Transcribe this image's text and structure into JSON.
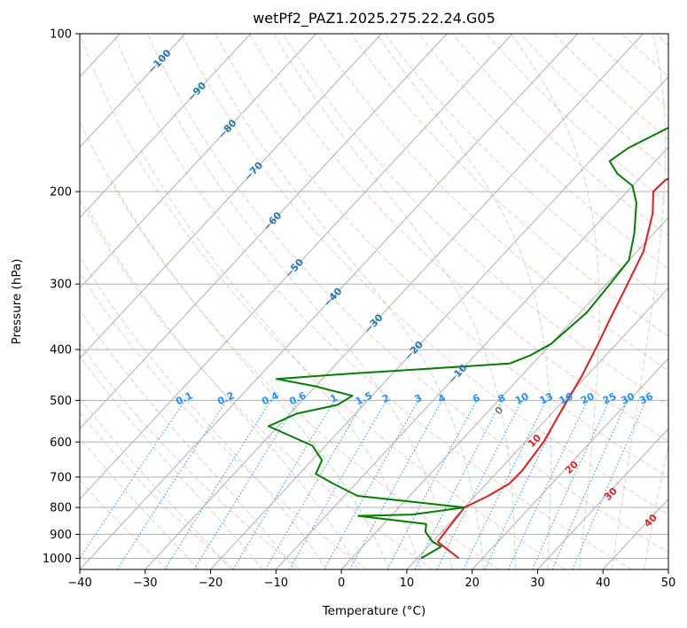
{
  "chart_data": {
    "type": "line",
    "title": "wetPf2_PAZ1.2025.275.22.24.G05",
    "xlabel": "Temperature (°C)",
    "ylabel": "Pressure (hPa)",
    "xlim": [
      -40,
      50
    ],
    "ylim": [
      1050,
      100
    ],
    "y_scale": "log",
    "x_ticks": [
      "−40",
      "−30",
      "−20",
      "−10",
      "0",
      "10",
      "20",
      "30",
      "40",
      "50"
    ],
    "x_tick_values": [
      -40,
      -30,
      -20,
      -10,
      0,
      10,
      20,
      30,
      40,
      50
    ],
    "y_ticks": [
      "100",
      "200",
      "300",
      "400",
      "500",
      "600",
      "700",
      "800",
      "900",
      "1000"
    ],
    "y_tick_values": [
      100,
      200,
      300,
      400,
      500,
      600,
      700,
      800,
      900,
      1000
    ],
    "colors": {
      "temperature": "#e41a1c",
      "dewpoint": "#008000",
      "isotherm_labels": "#1f77b4",
      "mixing_ratio": "#1e90ff",
      "moist_adiabat_labels": "#d62728",
      "zero_label": "#808080",
      "dry_adiabat": "#fa8072",
      "moist_adiabat": "#8fbc8f",
      "grid": "#b0b0b0"
    },
    "series": [
      {
        "key": "temperature",
        "points": [
          [
            16.4,
            1000
          ],
          [
            10.8,
            930
          ],
          [
            10.6,
            900
          ],
          [
            10.3,
            850
          ],
          [
            10.0,
            800
          ],
          [
            12.0,
            760
          ],
          [
            13.5,
            720
          ],
          [
            13.6,
            680
          ],
          [
            12.8,
            600
          ],
          [
            11.0,
            520
          ],
          [
            9.3,
            450
          ],
          [
            7.2,
            390
          ],
          [
            5.5,
            350
          ],
          [
            3.7,
            310
          ],
          [
            1.0,
            260
          ],
          [
            -3.0,
            220
          ],
          [
            -6.0,
            200
          ],
          [
            -5.8,
            190
          ],
          [
            -3.0,
            180
          ],
          [
            -1.5,
            170
          ],
          [
            0.0,
            160
          ],
          [
            3.5,
            150
          ],
          [
            10.0,
            140
          ],
          [
            19.0,
            120
          ],
          [
            27.0,
            100
          ]
        ]
      },
      {
        "key": "dewpoint",
        "points": [
          [
            10.6,
            1000
          ],
          [
            12.0,
            950
          ],
          [
            10.0,
            930
          ],
          [
            7.5,
            890
          ],
          [
            6.5,
            860
          ],
          [
            -5.0,
            830
          ],
          [
            3.0,
            825
          ],
          [
            10.0,
            800
          ],
          [
            -8.0,
            760
          ],
          [
            -13.5,
            720
          ],
          [
            -17.5,
            690
          ],
          [
            -18.5,
            650
          ],
          [
            -22.0,
            610
          ],
          [
            -31.5,
            560
          ],
          [
            -29.0,
            530
          ],
          [
            -24.0,
            510
          ],
          [
            -23.0,
            490
          ],
          [
            -30.0,
            470
          ],
          [
            -37.0,
            455
          ],
          [
            -27.0,
            445
          ],
          [
            -15.0,
            435
          ],
          [
            -3.5,
            425
          ],
          [
            -1.5,
            410
          ],
          [
            0.0,
            390
          ],
          [
            1.0,
            340
          ],
          [
            0.5,
            300
          ],
          [
            0.0,
            270
          ],
          [
            -3.0,
            240
          ],
          [
            -7.0,
            210
          ],
          [
            -10.0,
            195
          ],
          [
            -14.0,
            185
          ],
          [
            -17.0,
            175
          ],
          [
            -16.0,
            165
          ],
          [
            -10.0,
            140
          ],
          [
            -2.0,
            120
          ],
          [
            7.0,
            100
          ]
        ]
      }
    ],
    "isotherm_labels": [
      "−100",
      "−90",
      "−80",
      "−70",
      "−60",
      "−50",
      "−40",
      "−30",
      "−20",
      "−10"
    ],
    "isotherm_values": [
      -100,
      -90,
      -80,
      -70,
      -60,
      -50,
      -40,
      -30,
      -20,
      -10
    ],
    "mixing_ratio_labels": [
      "0.1",
      "0.2",
      "0.4",
      "0.6",
      "1",
      "1.5",
      "2",
      "3",
      "4",
      "6",
      "8",
      "10",
      "13",
      "16",
      "20",
      "25",
      "30",
      "36"
    ],
    "mixing_ratio_values": [
      0.1,
      0.2,
      0.4,
      0.6,
      1,
      1.5,
      2,
      3,
      4,
      6,
      8,
      10,
      13,
      16,
      20,
      25,
      30,
      36
    ],
    "moist_adiabat_labels": [
      "0",
      "10",
      "20",
      "30",
      "40"
    ],
    "moist_adiabat_values": [
      0,
      10,
      20,
      30,
      40
    ],
    "grid": true,
    "legend": "none"
  }
}
